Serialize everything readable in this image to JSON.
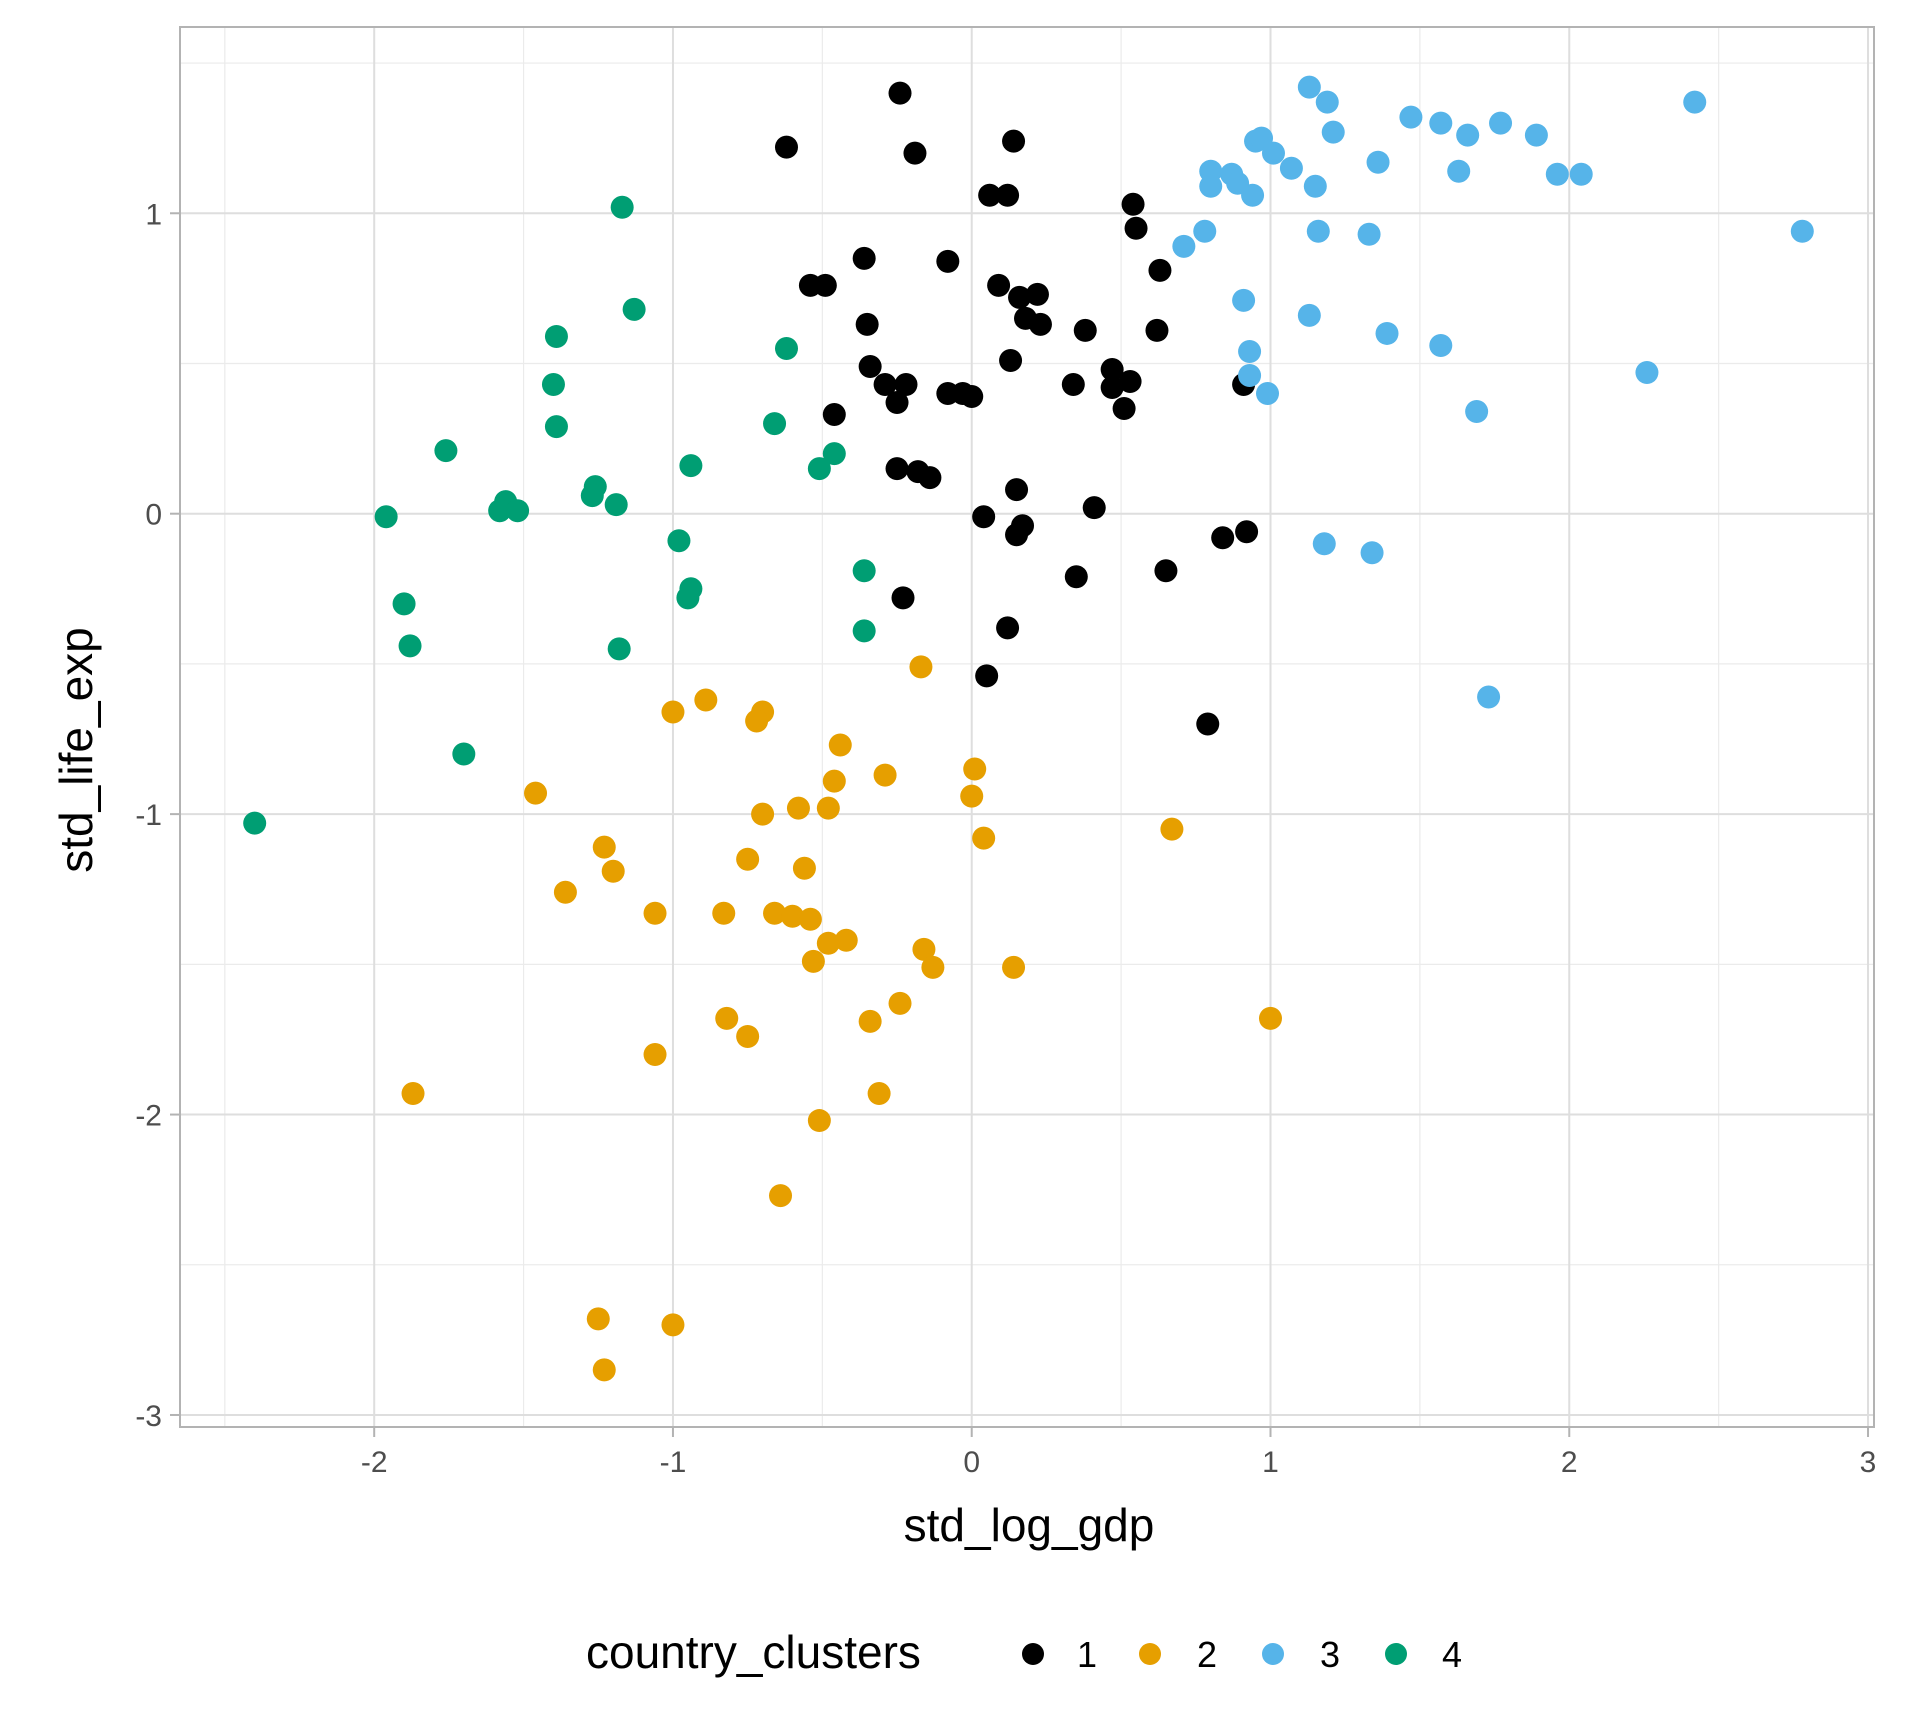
{
  "chart_data": {
    "type": "scatter",
    "xlabel": "std_log_gdp",
    "ylabel": "std_life_exp",
    "xlim": [
      -2.65,
      3.02
    ],
    "ylim": [
      -3.04,
      1.62
    ],
    "x_ticks": [
      -2,
      -1,
      0,
      1,
      2,
      3
    ],
    "y_ticks": [
      -3,
      -2,
      -1,
      0,
      1
    ],
    "x_tick_labels": [
      "-2",
      "-1",
      "0",
      "1",
      "2",
      "3"
    ],
    "y_tick_labels": [
      "-3",
      "-2",
      "-1",
      "0",
      "1"
    ],
    "grid": true,
    "legend": {
      "title": "country_clusters",
      "position": "bottom"
    },
    "series": [
      {
        "name": "1",
        "color": "#000000",
        "points": [
          [
            -0.24,
            1.4
          ],
          [
            -0.62,
            1.22
          ],
          [
            -0.19,
            1.2
          ],
          [
            0.14,
            1.24
          ],
          [
            0.06,
            1.06
          ],
          [
            0.12,
            1.06
          ],
          [
            0.54,
            1.03
          ],
          [
            0.55,
            0.95
          ],
          [
            -0.36,
            0.85
          ],
          [
            -0.08,
            0.84
          ],
          [
            0.63,
            0.81
          ],
          [
            -0.54,
            0.76
          ],
          [
            -0.49,
            0.76
          ],
          [
            0.09,
            0.76
          ],
          [
            0.16,
            0.72
          ],
          [
            0.22,
            0.73
          ],
          [
            0.18,
            0.65
          ],
          [
            0.23,
            0.63
          ],
          [
            -0.35,
            0.63
          ],
          [
            0.38,
            0.61
          ],
          [
            0.62,
            0.61
          ],
          [
            -0.34,
            0.49
          ],
          [
            0.13,
            0.51
          ],
          [
            -0.22,
            0.43
          ],
          [
            -0.29,
            0.43
          ],
          [
            0.34,
            0.43
          ],
          [
            0.47,
            0.48
          ],
          [
            0.47,
            0.42
          ],
          [
            0.53,
            0.44
          ],
          [
            -0.08,
            0.4
          ],
          [
            -0.03,
            0.4
          ],
          [
            0.0,
            0.39
          ],
          [
            -0.25,
            0.37
          ],
          [
            -0.46,
            0.33
          ],
          [
            0.51,
            0.35
          ],
          [
            0.91,
            0.43
          ],
          [
            -0.25,
            0.15
          ],
          [
            -0.18,
            0.14
          ],
          [
            -0.14,
            0.12
          ],
          [
            0.15,
            0.08
          ],
          [
            0.41,
            0.02
          ],
          [
            0.04,
            -0.01
          ],
          [
            0.17,
            -0.04
          ],
          [
            0.15,
            -0.07
          ],
          [
            0.84,
            -0.08
          ],
          [
            0.92,
            -0.06
          ],
          [
            0.35,
            -0.21
          ],
          [
            0.65,
            -0.19
          ],
          [
            -0.23,
            -0.28
          ],
          [
            0.12,
            -0.38
          ],
          [
            0.05,
            -0.54
          ],
          [
            0.79,
            -0.7
          ]
        ]
      },
      {
        "name": "2",
        "color": "#e69f00",
        "points": [
          [
            -0.17,
            -0.51
          ],
          [
            -0.89,
            -0.62
          ],
          [
            -1.0,
            -0.66
          ],
          [
            -0.7,
            -0.66
          ],
          [
            -0.72,
            -0.69
          ],
          [
            -0.44,
            -0.77
          ],
          [
            0.01,
            -0.85
          ],
          [
            -0.29,
            -0.87
          ],
          [
            -0.46,
            -0.89
          ],
          [
            -1.46,
            -0.93
          ],
          [
            0.0,
            -0.94
          ],
          [
            -0.58,
            -0.98
          ],
          [
            -0.48,
            -0.98
          ],
          [
            -0.7,
            -1.0
          ],
          [
            0.67,
            -1.05
          ],
          [
            0.04,
            -1.08
          ],
          [
            -1.23,
            -1.11
          ],
          [
            -0.75,
            -1.15
          ],
          [
            -0.56,
            -1.18
          ],
          [
            -1.2,
            -1.19
          ],
          [
            -1.36,
            -1.26
          ],
          [
            -1.06,
            -1.33
          ],
          [
            -0.83,
            -1.33
          ],
          [
            -0.66,
            -1.33
          ],
          [
            -0.6,
            -1.34
          ],
          [
            -0.54,
            -1.35
          ],
          [
            -0.42,
            -1.42
          ],
          [
            -0.48,
            -1.43
          ],
          [
            -0.16,
            -1.45
          ],
          [
            -0.53,
            -1.49
          ],
          [
            -0.13,
            -1.51
          ],
          [
            0.14,
            -1.51
          ],
          [
            -0.82,
            -1.68
          ],
          [
            -0.24,
            -1.63
          ],
          [
            -0.34,
            -1.69
          ],
          [
            -0.75,
            -1.74
          ],
          [
            1.0,
            -1.68
          ],
          [
            -1.06,
            -1.8
          ],
          [
            -1.87,
            -1.93
          ],
          [
            -0.31,
            -1.93
          ],
          [
            -0.51,
            -2.02
          ],
          [
            -0.64,
            -2.27
          ],
          [
            -1.25,
            -2.68
          ],
          [
            -1.0,
            -2.7
          ],
          [
            -1.23,
            -2.85
          ]
        ]
      },
      {
        "name": "3",
        "color": "#56b4e9",
        "points": [
          [
            1.13,
            1.42
          ],
          [
            1.19,
            1.37
          ],
          [
            2.42,
            1.37
          ],
          [
            1.47,
            1.32
          ],
          [
            1.57,
            1.3
          ],
          [
            1.77,
            1.3
          ],
          [
            1.21,
            1.27
          ],
          [
            1.66,
            1.26
          ],
          [
            1.89,
            1.26
          ],
          [
            0.95,
            1.24
          ],
          [
            0.97,
            1.25
          ],
          [
            1.01,
            1.2
          ],
          [
            1.36,
            1.17
          ],
          [
            1.07,
            1.15
          ],
          [
            0.8,
            1.14
          ],
          [
            0.87,
            1.13
          ],
          [
            1.63,
            1.14
          ],
          [
            1.96,
            1.13
          ],
          [
            2.04,
            1.13
          ],
          [
            0.89,
            1.1
          ],
          [
            0.8,
            1.09
          ],
          [
            1.15,
            1.09
          ],
          [
            0.94,
            1.06
          ],
          [
            0.78,
            0.94
          ],
          [
            0.71,
            0.89
          ],
          [
            1.16,
            0.94
          ],
          [
            1.33,
            0.93
          ],
          [
            2.78,
            0.94
          ],
          [
            0.91,
            0.71
          ],
          [
            1.13,
            0.66
          ],
          [
            1.39,
            0.6
          ],
          [
            1.57,
            0.56
          ],
          [
            0.93,
            0.54
          ],
          [
            0.93,
            0.46
          ],
          [
            2.26,
            0.47
          ],
          [
            0.99,
            0.4
          ],
          [
            1.69,
            0.34
          ],
          [
            1.18,
            -0.1
          ],
          [
            1.34,
            -0.13
          ],
          [
            1.73,
            -0.61
          ]
        ]
      },
      {
        "name": "4",
        "color": "#009e73",
        "points": [
          [
            -1.17,
            1.02
          ],
          [
            -1.13,
            0.68
          ],
          [
            -1.39,
            0.59
          ],
          [
            -0.62,
            0.55
          ],
          [
            -1.4,
            0.43
          ],
          [
            -1.39,
            0.29
          ],
          [
            -0.66,
            0.3
          ],
          [
            -1.76,
            0.21
          ],
          [
            -0.46,
            0.2
          ],
          [
            -0.94,
            0.16
          ],
          [
            -0.51,
            0.15
          ],
          [
            -1.26,
            0.09
          ],
          [
            -1.27,
            0.06
          ],
          [
            -1.56,
            0.04
          ],
          [
            -1.58,
            0.01
          ],
          [
            -1.52,
            0.01
          ],
          [
            -1.19,
            0.03
          ],
          [
            -1.96,
            -0.01
          ],
          [
            -0.98,
            -0.09
          ],
          [
            -0.36,
            -0.19
          ],
          [
            -0.94,
            -0.25
          ],
          [
            -0.95,
            -0.28
          ],
          [
            -1.9,
            -0.3
          ],
          [
            -1.88,
            -0.44
          ],
          [
            -1.18,
            -0.45
          ],
          [
            -0.36,
            -0.39
          ],
          [
            -1.7,
            -0.8
          ],
          [
            -2.4,
            -1.03
          ]
        ]
      }
    ]
  }
}
